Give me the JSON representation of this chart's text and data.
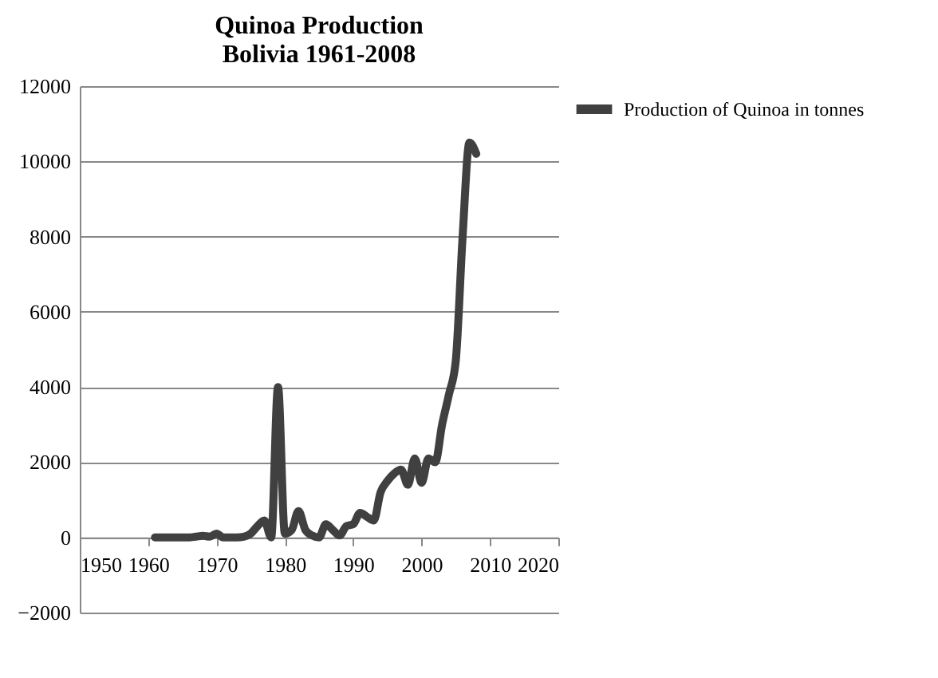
{
  "chart_data": {
    "type": "line",
    "title": "Quinoa Production\nBolivia 1961-2008",
    "x": [
      1961,
      1962,
      1963,
      1964,
      1965,
      1966,
      1967,
      1968,
      1969,
      1970,
      1971,
      1972,
      1973,
      1974,
      1975,
      1976,
      1977,
      1978,
      1979,
      1980,
      1981,
      1982,
      1983,
      1984,
      1985,
      1986,
      1987,
      1988,
      1989,
      1990,
      1991,
      1992,
      1993,
      1994,
      1995,
      1996,
      1997,
      1998,
      1999,
      2000,
      2001,
      2002,
      2003,
      2004,
      2005,
      2006,
      2007,
      2008
    ],
    "series": [
      {
        "name": "Production of Quinoa in tonnes",
        "color": "#404040",
        "values": [
          0,
          0,
          0,
          0,
          0,
          0,
          20,
          40,
          20,
          100,
          0,
          0,
          0,
          20,
          100,
          300,
          450,
          0,
          4000,
          100,
          200,
          700,
          200,
          50,
          0,
          350,
          200,
          50,
          300,
          350,
          650,
          550,
          450,
          1200,
          1500,
          1700,
          1800,
          1400,
          2100,
          1450,
          2100,
          2000,
          3000,
          3800,
          4700,
          8000,
          10500,
          10200
        ]
      }
    ],
    "xlim": [
      1950,
      2020
    ],
    "xticks": [
      1950,
      1960,
      1970,
      1980,
      1990,
      2000,
      2010,
      2020
    ],
    "ylim": [
      -2000,
      12000
    ],
    "yticks": [
      -2000,
      0,
      2000,
      4000,
      6000,
      8000,
      10000,
      12000
    ],
    "grid": "y",
    "legend": "right",
    "marker": "none",
    "line_style": "solid"
  }
}
